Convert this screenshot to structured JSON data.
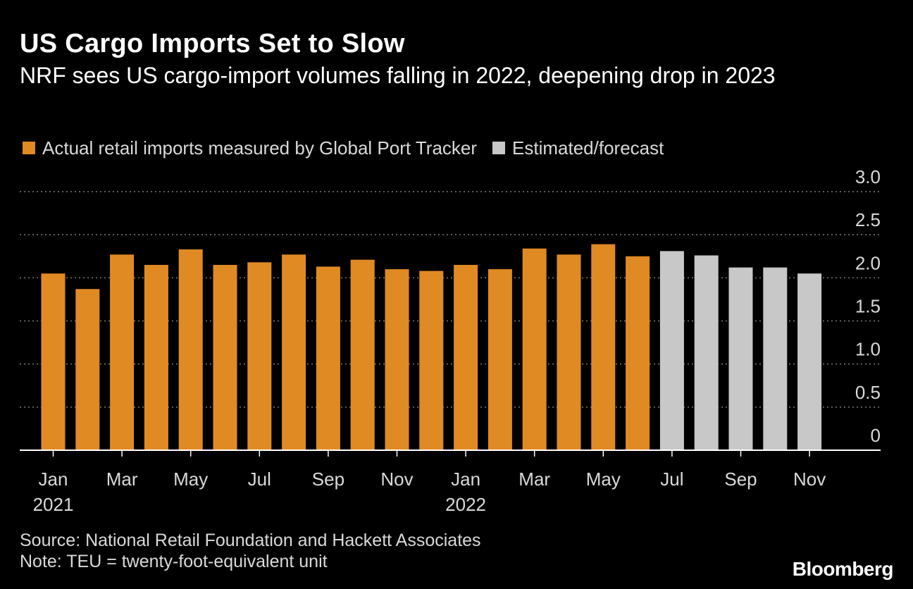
{
  "title": "US Cargo Imports Set to Slow",
  "subtitle": "NRF sees US cargo-import volumes falling in 2022, deepening drop in 2023",
  "legend": {
    "actual_label": "Actual retail imports measured by Global Port Tracker",
    "actual_color": "#e08a23",
    "forecast_label": "Estimated/forecast",
    "forecast_color": "#c8c8c8"
  },
  "footer": {
    "source": "Source: National Retail Foundation and Hackett Associates",
    "note": "Note: TEU = twenty-foot-equivalent unit",
    "brand": "Bloomberg"
  },
  "chart_data": {
    "type": "bar",
    "categories": [
      "Jan 2021",
      "Feb 2021",
      "Mar 2021",
      "Apr 2021",
      "May 2021",
      "Jun 2021",
      "Jul 2021",
      "Aug 2021",
      "Sep 2021",
      "Oct 2021",
      "Nov 2021",
      "Dec 2021",
      "Jan 2022",
      "Feb 2022",
      "Mar 2022",
      "Apr 2022",
      "May 2022",
      "Jun 2022",
      "Jul 2022",
      "Aug 2022",
      "Sep 2022",
      "Oct 2022",
      "Nov 2022"
    ],
    "series": [
      {
        "name": "Actual retail imports measured by Global Port Tracker",
        "color": "#e08a23",
        "values": [
          2.05,
          1.87,
          2.27,
          2.15,
          2.33,
          2.15,
          2.18,
          2.27,
          2.13,
          2.21,
          2.1,
          2.08,
          2.15,
          2.1,
          2.34,
          2.27,
          2.39,
          2.25,
          null,
          null,
          null,
          null,
          null
        ]
      },
      {
        "name": "Estimated/forecast",
        "color": "#c8c8c8",
        "values": [
          null,
          null,
          null,
          null,
          null,
          null,
          null,
          null,
          null,
          null,
          null,
          null,
          null,
          null,
          null,
          null,
          null,
          null,
          2.31,
          2.26,
          2.12,
          2.12,
          2.05
        ]
      }
    ],
    "x_tick_labels": [
      {
        "index": 0,
        "month": "Jan",
        "year": "2021"
      },
      {
        "index": 2,
        "month": "Mar",
        "year": ""
      },
      {
        "index": 4,
        "month": "May",
        "year": ""
      },
      {
        "index": 6,
        "month": "Jul",
        "year": ""
      },
      {
        "index": 8,
        "month": "Sep",
        "year": ""
      },
      {
        "index": 10,
        "month": "Nov",
        "year": ""
      },
      {
        "index": 12,
        "month": "Jan",
        "year": "2022"
      },
      {
        "index": 14,
        "month": "Mar",
        "year": ""
      },
      {
        "index": 16,
        "month": "May",
        "year": ""
      },
      {
        "index": 18,
        "month": "Jul",
        "year": ""
      },
      {
        "index": 20,
        "month": "Sep",
        "year": ""
      },
      {
        "index": 22,
        "month": "Nov",
        "year": ""
      }
    ],
    "y_ticks": [
      {
        "value": 0,
        "label": "0"
      },
      {
        "value": 0.5,
        "label": "0.5"
      },
      {
        "value": 1.0,
        "label": "1.0"
      },
      {
        "value": 1.5,
        "label": "1.5"
      },
      {
        "value": 2.0,
        "label": "2.0"
      },
      {
        "value": 2.5,
        "label": "2.5"
      },
      {
        "value": 3.0,
        "label": "3.0"
      }
    ],
    "ylim": [
      0,
      3.0
    ],
    "xlabel": "",
    "ylabel": "",
    "y_axis_side": "right",
    "grid": "dotted horizontal",
    "legend_position": "top-left"
  }
}
